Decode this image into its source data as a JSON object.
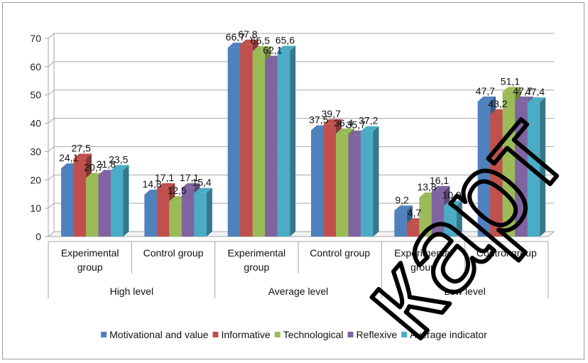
{
  "chart_data": {
    "type": "bar",
    "title": "",
    "xlabel": "",
    "ylabel": "",
    "ylim": [
      0,
      70
    ],
    "yticks": [
      0,
      10,
      20,
      30,
      40,
      50,
      60,
      70
    ],
    "grid": true,
    "style": "3d-clustered-column",
    "legend_position": "bottom",
    "categories": [
      {
        "label": "Experimental group",
        "group": "High level"
      },
      {
        "label": "Control group",
        "group": "High level"
      },
      {
        "label": "Experimental group",
        "group": "Average level"
      },
      {
        "label": "Control group",
        "group": "Average level"
      },
      {
        "label": "Experimental group",
        "group": "Low level"
      },
      {
        "label": "Control group",
        "group": "Low level"
      }
    ],
    "groups": [
      "High level",
      "Average level",
      "Low level"
    ],
    "series": [
      {
        "name": "Motivational and value",
        "color": "#4f81bd",
        "values": [
          24.1,
          14.8,
          66.7,
          37.5,
          9.2,
          47.7
        ],
        "labels": [
          "24,1",
          "14,8",
          "66,7",
          "37,5",
          "9,2",
          "47,7"
        ]
      },
      {
        "name": "Informative",
        "color": "#c0504d",
        "values": [
          27.5,
          17.1,
          67.8,
          39.7,
          4.7,
          43.2
        ],
        "labels": [
          "27,5",
          "17,1",
          "67,8",
          "39,7",
          "4,7",
          "43,2"
        ]
      },
      {
        "name": "Technological",
        "color": "#9bbb59",
        "values": [
          20.7,
          12.5,
          65.5,
          36.4,
          13.8,
          51.1
        ],
        "labels": [
          "20,7",
          "12,5",
          "65,5",
          "36,4",
          "13,8",
          "51,1"
        ]
      },
      {
        "name": "Reflexive",
        "color": "#8064a2",
        "values": [
          21.8,
          17.1,
          62.1,
          35.7,
          16.1,
          47.7
        ],
        "labels": [
          "21,8",
          "17,1",
          "62,1",
          "35,7",
          "16,1",
          "47,7"
        ]
      },
      {
        "name": "Average indicator",
        "color": "#4bacc6",
        "values": [
          23.5,
          15.4,
          65.6,
          37.2,
          10.9,
          47.4
        ],
        "labels": [
          "23,5",
          "15,4",
          "65,6",
          "37,2",
          "10,9",
          "47,4"
        ]
      }
    ]
  },
  "watermark": {
    "text": "карт"
  }
}
